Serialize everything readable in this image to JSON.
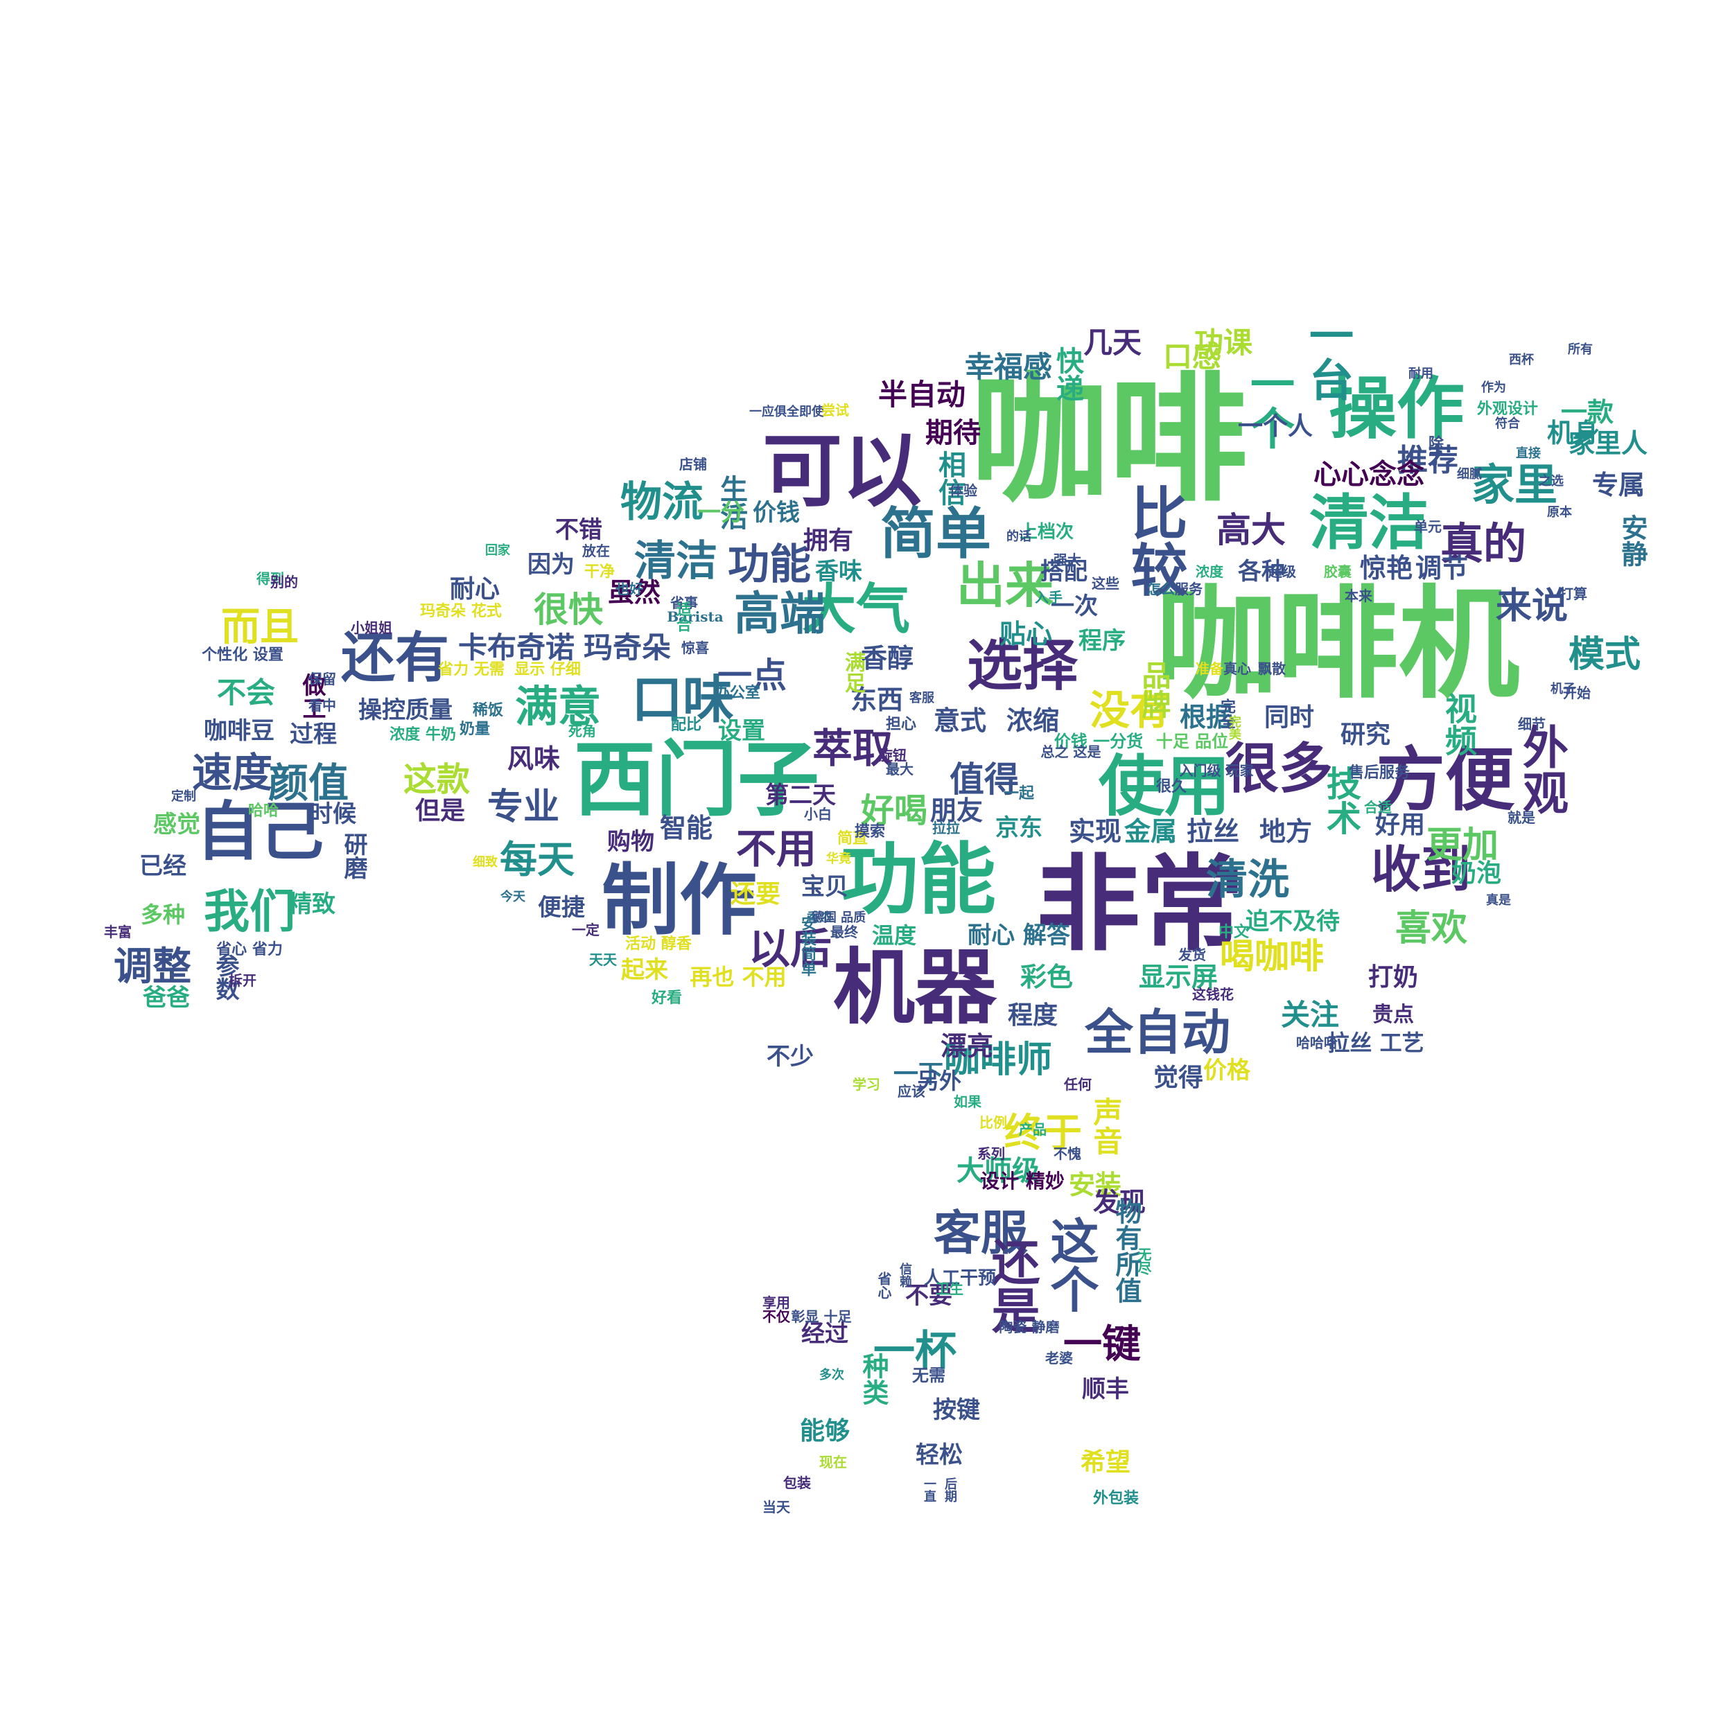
{
  "word_cloud": {
    "palette": {
      "c0": "#440154",
      "c1": "#472c7a",
      "c2": "#3b518b",
      "c3": "#2c718e",
      "c4": "#21908d",
      "c5": "#27ad81",
      "c6": "#5cc863",
      "c7": "#aadc32",
      "c8": "#e0e020"
    },
    "words": [
      "咖啡",
      "咖啡机",
      "非常",
      "西门子",
      "可以",
      "功能",
      "操作",
      "机器",
      "制作",
      "方便",
      "清洁",
      "使用",
      "选择",
      "简单",
      "自己",
      "还有",
      "大气",
      "很多",
      "口味",
      "收到",
      "全自动",
      "高端",
      "比较",
      "出来",
      "真的",
      "家里",
      "清洗",
      "我们",
      "满意",
      "外观",
      "一个",
      "一台",
      "物流",
      "功能",
      "清洁",
      "没有",
      "萃取",
      "而且",
      "速度",
      "颜值",
      "调整",
      "以后",
      "每天",
      "不用",
      "终于",
      "客服",
      "这个",
      "还是",
      "一杯",
      "一键",
      "咖啡师",
      "喝咖啡",
      "更加",
      "喜欢",
      "模式",
      "来说",
      "高大",
      "推荐",
      "半自动",
      "幸福感",
      "几天",
      "口感",
      "功课",
      "快递",
      "期待",
      "相信",
      "生活",
      "心心念念",
      "专属",
      "安静",
      "机身",
      "家里人",
      "一款",
      "一个人",
      "价钱",
      "一分",
      "不错",
      "因为",
      "拥有",
      "香味",
      "虽然",
      "很快",
      "耐心",
      "贴心",
      "搭配",
      "品牌",
      "程序",
      "一次",
      "各种",
      "调节",
      "惊艳",
      "卡布奇诺",
      "玛奇朵",
      "一点",
      "香醇",
      "东西",
      "意式",
      "浓缩",
      "根据",
      "同时",
      "研究",
      "视频",
      "值得",
      "专业",
      "这款",
      "风味",
      "朋友",
      "好喝",
      "第二天",
      "京东",
      "实现",
      "金属",
      "拉丝",
      "地方",
      "技术",
      "好用",
      "奶泡",
      "迫不及待",
      "打奶",
      "关注",
      "拉丝 工艺",
      "贵点",
      "彩色",
      "显示屏",
      "程度",
      "漂亮",
      "一下",
      "另外",
      "觉得",
      "价格",
      "大师级",
      "设计 精妙",
      "安装",
      "声音",
      "发现",
      "物有所值",
      "按键",
      "顺丰",
      "轻松",
      "希望",
      "能够",
      "种类",
      "经过",
      "不要",
      "但是",
      "智能",
      "购物",
      "还要",
      "宝贝",
      "便捷",
      "温度",
      "耐心 解答",
      "起来",
      "再也 不用",
      "不少",
      "操控质量",
      "过程",
      "咖啡豆",
      "不会",
      "感觉",
      "已经",
      "多种",
      "精致",
      "参数",
      "爸爸",
      "时候",
      "研磨",
      "做工",
      "设置",
      "满足",
      "个性化 设置",
      "玛奇朵 花式",
      "省力 无需",
      "显示 仔细",
      "省心 省力",
      "活动 醇香",
      "价钱 一分货",
      "十足 品位",
      "入门级 玩家",
      "人工干预",
      "无需",
      "外观设计",
      "外包装",
      "售后服务",
      "上档次",
      "Barista",
      "小白",
      "简直",
      "担心",
      "最大",
      "旋钮",
      "一起",
      "很久",
      "拉拉",
      "浓度 牛奶",
      "奶量",
      "配比",
      "办公室",
      "稀饭",
      "看中",
      "保留",
      "哈哈",
      "定制",
      "丰富",
      "拆开",
      "一定",
      "天天",
      "好看",
      "中文",
      "发货",
      "这钱花",
      "哈哈哈",
      "任何",
      "学习",
      "应该",
      "如果",
      "比例",
      "产品",
      "不愧",
      "系列",
      "陶瓷 静磨",
      "老婆",
      "多次",
      "当天",
      "包装",
      "现在",
      "享用",
      "不仅",
      "彰显 十足",
      "卫生",
      "一应俱全即使",
      "尝试",
      "店铺",
      "回家",
      "放在",
      "干净",
      "也好",
      "省事",
      "适合",
      "惊喜",
      "得到",
      "别的",
      "小姐姐",
      "准备",
      "真心",
      "飘散",
      "完全",
      "直接",
      "细腻",
      "除了",
      "体验",
      "强大",
      "这些",
      "入手",
      "超级",
      "浓度",
      "服务",
      "怎么",
      "胶囊",
      "本来",
      "单元",
      "原本",
      "打算",
      "开始",
      "机子",
      "细节",
      "就是",
      "真是",
      "合适",
      "总之 这是",
      "死角",
      "今天",
      "细致",
      "所有",
      "西杯",
      "作为",
      "符合",
      "之选",
      "耐用",
      "的话",
      "摸索",
      "华竟",
      "香浓",
      "安装简单",
      "客服",
      "德国 品质",
      "最终",
      "省心",
      "一直",
      "后期",
      "无尽",
      "完美",
      "信赖"
    ]
  }
}
